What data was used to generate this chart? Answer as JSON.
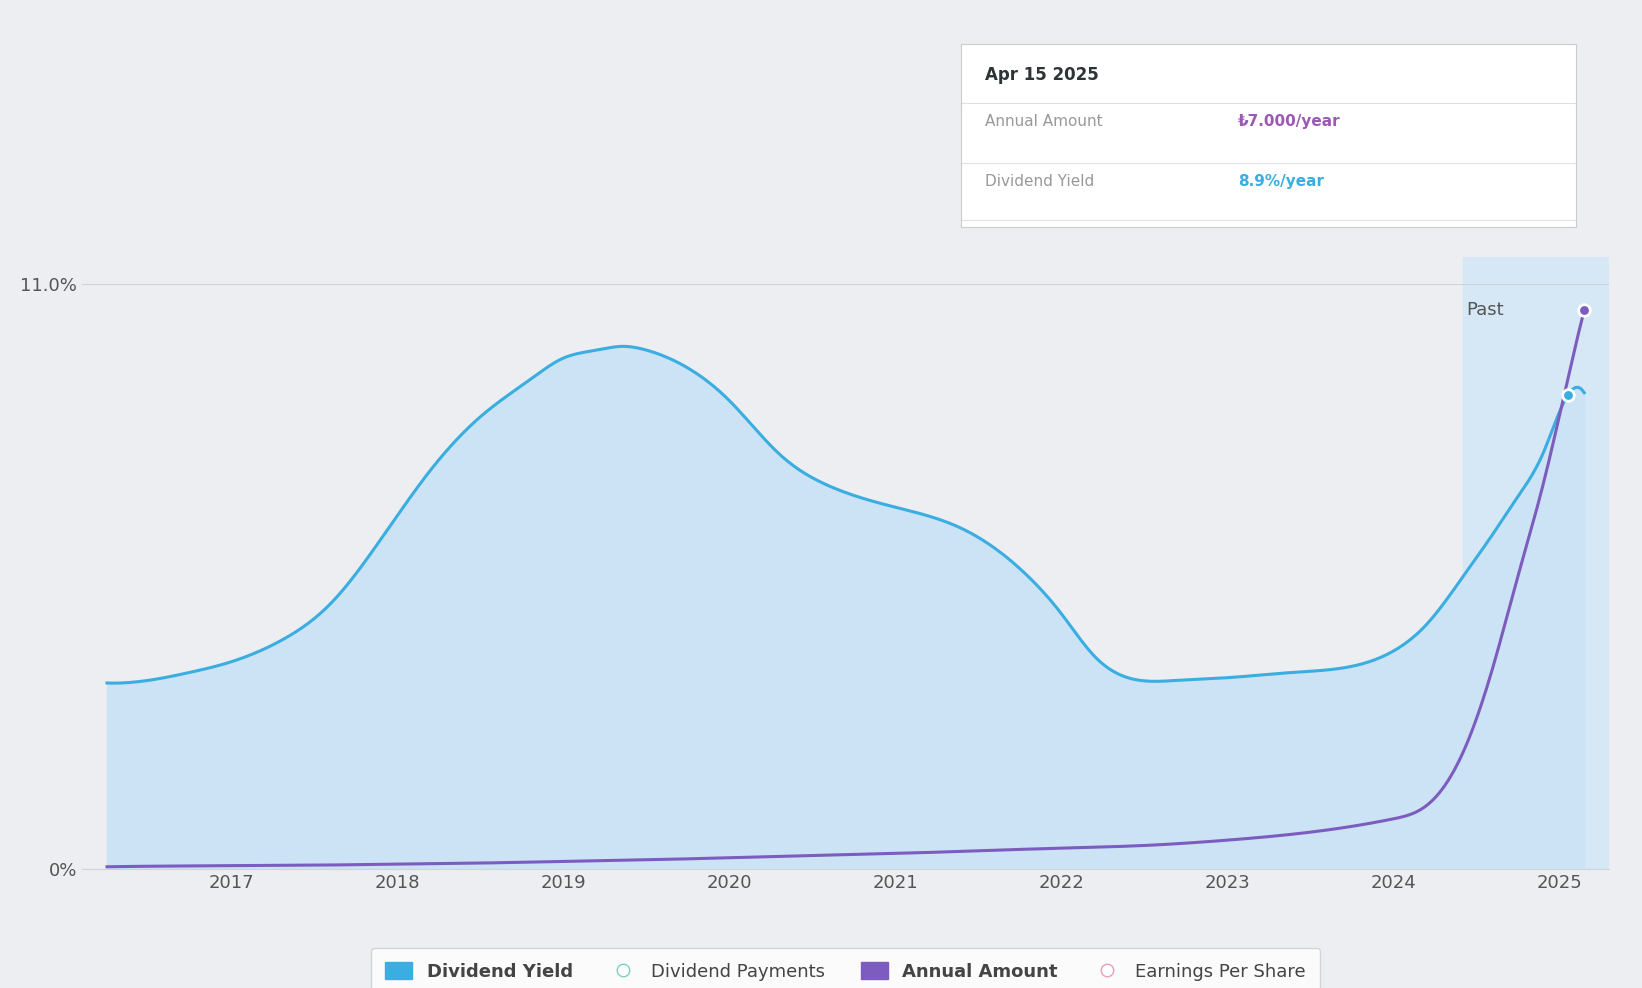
{
  "bg_color": "#eceef1",
  "plot_bg_color": "#eceef1",
  "past_shade_color": "#d6e8f5",
  "fill_color_blue": "#cce3f5",
  "line_blue_color": "#3aade1",
  "line_purple_color": "#7c5cbf",
  "grid_color": "#d0d4d8",
  "ylabel_text": "11.0%",
  "y0_text": "0%",
  "x_ticks": [
    2017,
    2018,
    2019,
    2020,
    2021,
    2022,
    2023,
    2024,
    2025
  ],
  "past_x": 2024.42,
  "tooltip_date": "Apr 15 2025",
  "tooltip_annual_label": "Annual Amount",
  "tooltip_annual_value": "₺7.000/year",
  "tooltip_yield_label": "Dividend Yield",
  "tooltip_yield_value": "8.9%/year",
  "tooltip_annual_color": "#9b59b6",
  "tooltip_yield_color": "#3aade1",
  "past_label": "Past",
  "legend_items": [
    {
      "label": "Dividend Yield",
      "color": "#3aade1",
      "filled": true
    },
    {
      "label": "Dividend Payments",
      "color": "#7ecec4",
      "filled": false
    },
    {
      "label": "Annual Amount",
      "color": "#7c5cbf",
      "filled": true
    },
    {
      "label": "Earnings Per Share",
      "color": "#e8a0b4",
      "filled": false
    }
  ],
  "div_yield_x": [
    2016.25,
    2016.5,
    2016.75,
    2017.0,
    2017.3,
    2017.6,
    2017.9,
    2018.2,
    2018.5,
    2018.8,
    2019.0,
    2019.2,
    2019.35,
    2019.5,
    2019.7,
    2020.0,
    2020.3,
    2020.6,
    2021.0,
    2021.4,
    2021.8,
    2022.0,
    2022.2,
    2022.4,
    2022.7,
    2023.0,
    2023.4,
    2023.8,
    2024.0,
    2024.2,
    2024.42,
    2024.6,
    2024.75,
    2024.9,
    2025.05,
    2025.15
  ],
  "div_yield_y": [
    3.5,
    3.55,
    3.7,
    3.9,
    4.3,
    5.0,
    6.2,
    7.5,
    8.5,
    9.2,
    9.6,
    9.75,
    9.82,
    9.75,
    9.5,
    8.8,
    7.8,
    7.2,
    6.8,
    6.4,
    5.5,
    4.8,
    4.0,
    3.6,
    3.55,
    3.6,
    3.7,
    3.85,
    4.1,
    4.6,
    5.5,
    6.3,
    7.0,
    7.8,
    8.9,
    8.95
  ],
  "annual_amt_x": [
    2016.25,
    2016.5,
    2017.0,
    2017.5,
    2018.0,
    2018.5,
    2019.0,
    2019.5,
    2020.0,
    2020.5,
    2021.0,
    2021.5,
    2022.0,
    2022.5,
    2023.0,
    2023.5,
    2024.0,
    2024.2,
    2024.42,
    2024.6,
    2024.75,
    2024.9,
    2025.05,
    2025.15
  ],
  "annual_amt_y": [
    0.05,
    0.06,
    0.07,
    0.08,
    0.1,
    0.12,
    0.15,
    0.18,
    0.22,
    0.26,
    0.3,
    0.35,
    0.4,
    0.45,
    0.55,
    0.7,
    0.95,
    1.2,
    2.2,
    3.8,
    5.5,
    7.2,
    9.2,
    10.5
  ],
  "ylim": [
    0,
    11.5
  ],
  "xlim": [
    2016.1,
    2025.3
  ],
  "dot_blue_x": 2025.05,
  "dot_blue_y": 8.9,
  "dot_purple_x": 2025.15,
  "dot_purple_y": 10.5
}
